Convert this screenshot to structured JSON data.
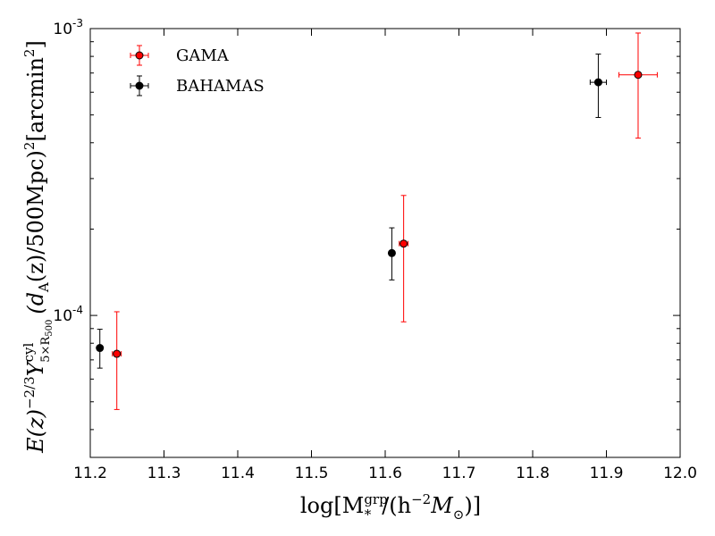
{
  "chart_data": {
    "type": "scatter",
    "xscale": "linear",
    "yscale": "log",
    "xlim": [
      11.2,
      12.0
    ],
    "ylim": [
      3.2e-05,
      0.001
    ],
    "x_ticks": [
      11.2,
      11.3,
      11.4,
      11.5,
      11.6,
      11.7,
      11.8,
      11.9,
      12.0
    ],
    "x_tick_labels": [
      "11.2",
      "11.3",
      "11.4",
      "11.5",
      "11.6",
      "11.7",
      "11.8",
      "11.9",
      "12.0"
    ],
    "y_major_ticks": [
      0.0001,
      0.001
    ],
    "y_tick_labels": [
      {
        "base": "10",
        "exp": "-4"
      },
      {
        "base": "10",
        "exp": "-3"
      }
    ],
    "xlabel": {
      "main": "log[M",
      "sup": "grp",
      "sub": "*",
      "rest": "/(h",
      "exp": "−2",
      "tail": "M",
      "tail_sub": "⊙",
      "close": ")]"
    },
    "ylabel": {
      "part1": "E(z)",
      "part1_exp": "−2/3",
      "part2": "Y",
      "part2_sup": "cyl",
      "part2_sub": "5×R",
      "part2_subsub": "500",
      "part3": "(d",
      "part3_sub": "A",
      "part4": "(z)/500Mpc)",
      "part4_exp": "2",
      "part5": "[arcmin",
      "part5_exp": "2",
      "part6": "]"
    },
    "series": [
      {
        "name": "GAMA",
        "color": "#ff0000",
        "ecolor": "#ff0000",
        "points": [
          {
            "x": 11.236,
            "xerr": 0.006,
            "y": 7.35e-05,
            "ylo": 4.7e-05,
            "yhi": 0.000103
          },
          {
            "x": 11.625,
            "xerr": 0.006,
            "y": 0.000178,
            "ylo": 9.5e-05,
            "yhi": 0.000262
          },
          {
            "x": 11.943,
            "xerr": 0.026,
            "y": 0.00069,
            "ylo": 0.000415,
            "yhi": 0.000965
          }
        ]
      },
      {
        "name": "BAHAMAS",
        "color": "#000000",
        "ecolor": "#000000",
        "points": [
          {
            "x": 11.213,
            "xerr": 0.0,
            "y": 7.7e-05,
            "ylo": 6.55e-05,
            "yhi": 8.95e-05
          },
          {
            "x": 11.609,
            "xerr": 0.0,
            "y": 0.000165,
            "ylo": 0.000133,
            "yhi": 0.000202
          },
          {
            "x": 11.889,
            "xerr": 0.011,
            "y": 0.00065,
            "ylo": 0.00049,
            "yhi": 0.000815
          }
        ]
      }
    ],
    "legend": {
      "location": "upper-left",
      "entries": [
        "GAMA",
        "BAHAMAS"
      ]
    }
  }
}
